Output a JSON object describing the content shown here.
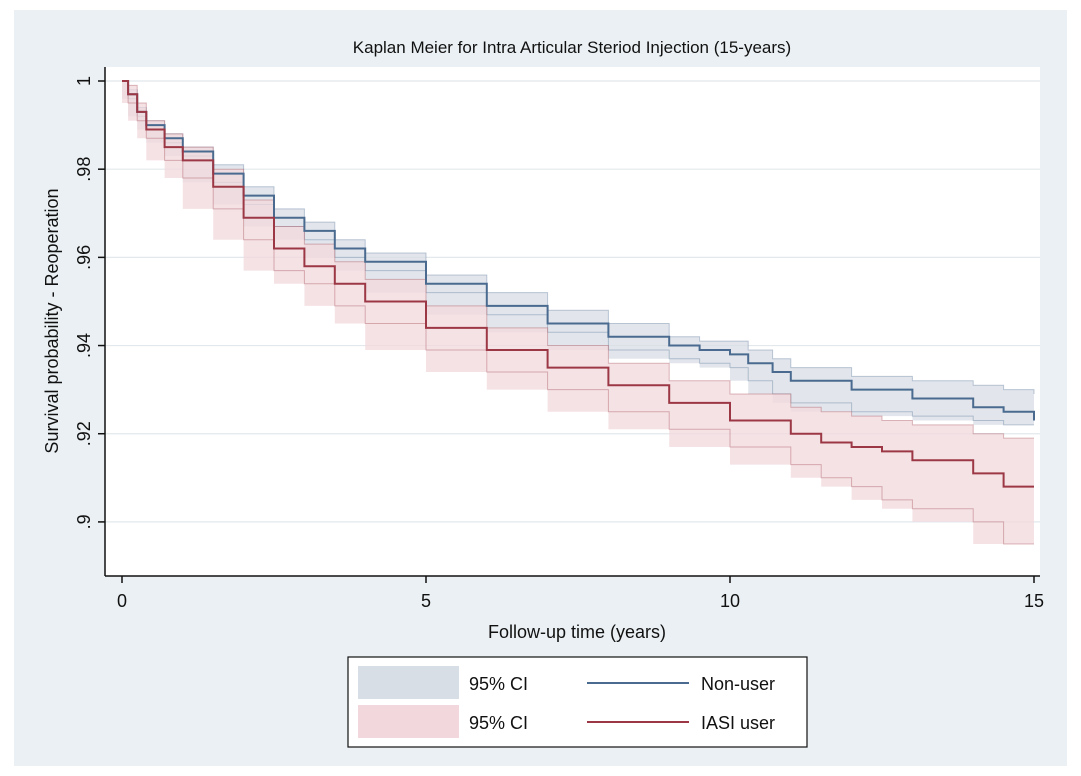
{
  "chart_data": {
    "type": "line",
    "title": "Kaplan Meier for Intra Articular Steriod Injection (15-years)",
    "xlabel": "Follow-up time (years)",
    "ylabel": "Survival probability - Reoperation",
    "xlim": [
      0,
      15
    ],
    "ylim": [
      0.89,
      1.0
    ],
    "xticks": [
      0,
      5,
      10,
      15
    ],
    "xtick_labels": [
      "0",
      "5",
      "10",
      "15"
    ],
    "yticks": [
      0.9,
      0.92,
      0.94,
      0.96,
      0.98,
      1.0
    ],
    "ytick_labels": [
      ".9",
      ".92",
      ".94",
      ".96",
      ".98",
      "1"
    ],
    "grid": true,
    "legend_position": "bottom",
    "legend": [
      {
        "label": "95% CI",
        "kind": "band",
        "color": "#d8dee6"
      },
      {
        "label": "Non-user",
        "kind": "line",
        "color": "#4a6b8f"
      },
      {
        "label": "95% CI",
        "kind": "band",
        "color": "#f2d8dc"
      },
      {
        "label": "IASI user",
        "kind": "line",
        "color": "#9c3845"
      }
    ],
    "series": [
      {
        "name": "Non-user",
        "color": "#4a6b8f",
        "band_color": "#d8dee6",
        "x": [
          0,
          0.1,
          0.25,
          0.4,
          0.7,
          1,
          1.5,
          2,
          2.5,
          3,
          3.5,
          4,
          5,
          6,
          7,
          8,
          9,
          9.5,
          10,
          10.3,
          10.7,
          11,
          12,
          13,
          14,
          14.5,
          15
        ],
        "y": [
          1.0,
          0.997,
          0.993,
          0.99,
          0.987,
          0.984,
          0.979,
          0.974,
          0.969,
          0.966,
          0.962,
          0.959,
          0.954,
          0.949,
          0.945,
          0.942,
          0.94,
          0.939,
          0.938,
          0.936,
          0.934,
          0.932,
          0.93,
          0.928,
          0.926,
          0.925,
          0.923
        ],
        "lower": [
          1.0,
          0.996,
          0.992,
          0.989,
          0.986,
          0.983,
          0.977,
          0.972,
          0.967,
          0.964,
          0.96,
          0.957,
          0.952,
          0.947,
          0.943,
          0.939,
          0.937,
          0.936,
          0.935,
          0.932,
          0.929,
          0.927,
          0.925,
          0.924,
          0.923,
          0.922,
          0.922
        ],
        "upper": [
          1.0,
          0.998,
          0.994,
          0.991,
          0.988,
          0.985,
          0.981,
          0.976,
          0.971,
          0.968,
          0.964,
          0.961,
          0.956,
          0.952,
          0.948,
          0.945,
          0.942,
          0.941,
          0.941,
          0.939,
          0.937,
          0.935,
          0.933,
          0.932,
          0.931,
          0.93,
          0.929
        ]
      },
      {
        "name": "IASI user",
        "color": "#9c3845",
        "band_color": "#f2d8dc",
        "x": [
          0,
          0.1,
          0.25,
          0.4,
          0.7,
          1,
          1.5,
          2,
          2.5,
          3,
          3.5,
          4,
          5,
          6,
          7,
          8,
          9,
          10,
          11,
          11.5,
          12,
          12.5,
          13,
          14,
          14.5,
          15
        ],
        "y": [
          1.0,
          0.997,
          0.993,
          0.989,
          0.985,
          0.982,
          0.976,
          0.969,
          0.962,
          0.958,
          0.954,
          0.95,
          0.944,
          0.939,
          0.935,
          0.931,
          0.927,
          0.923,
          0.92,
          0.918,
          0.917,
          0.916,
          0.914,
          0.911,
          0.908,
          0.908
        ],
        "lower": [
          1.0,
          0.995,
          0.991,
          0.987,
          0.982,
          0.978,
          0.971,
          0.964,
          0.957,
          0.954,
          0.949,
          0.945,
          0.939,
          0.934,
          0.93,
          0.925,
          0.921,
          0.917,
          0.913,
          0.91,
          0.908,
          0.905,
          0.903,
          0.9,
          0.895,
          0.895
        ],
        "upper": [
          1.0,
          0.999,
          0.995,
          0.991,
          0.988,
          0.985,
          0.98,
          0.973,
          0.967,
          0.963,
          0.959,
          0.955,
          0.949,
          0.944,
          0.94,
          0.936,
          0.932,
          0.929,
          0.926,
          0.925,
          0.924,
          0.923,
          0.922,
          0.92,
          0.919,
          0.919
        ]
      }
    ]
  }
}
